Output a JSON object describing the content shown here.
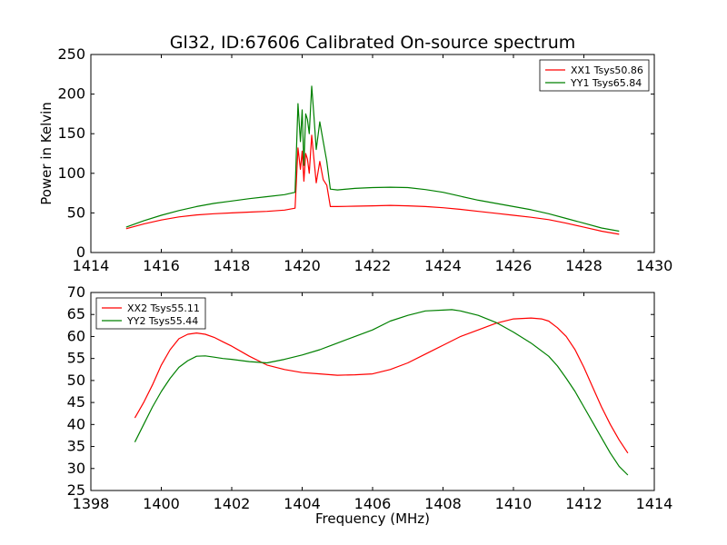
{
  "chart_data": [
    {
      "type": "line",
      "title": "Gl32, ID:67606 Calibrated On-source spectrum",
      "xlabel": "",
      "ylabel": "Power in Kelvin",
      "xlim": [
        1414,
        1430
      ],
      "ylim": [
        0,
        250
      ],
      "xticks": [
        "1414",
        "1416",
        "1418",
        "1420",
        "1422",
        "1424",
        "1426",
        "1428",
        "1430"
      ],
      "yticks": [
        "0",
        "50",
        "100",
        "150",
        "200",
        "250"
      ],
      "legend_position": "top-right",
      "grid": false,
      "series": [
        {
          "name": "XX1 Tsys50.86",
          "color": "#ff0000",
          "x": [
            1415.0,
            1415.5,
            1416.0,
            1416.5,
            1417.0,
            1417.5,
            1418.0,
            1418.5,
            1419.0,
            1419.5,
            1419.8,
            1419.88,
            1419.95,
            1420.0,
            1420.05,
            1420.1,
            1420.15,
            1420.2,
            1420.27,
            1420.33,
            1420.4,
            1420.5,
            1420.6,
            1420.7,
            1420.8,
            1421.0,
            1421.5,
            1422.0,
            1422.5,
            1423.0,
            1423.5,
            1424.0,
            1424.5,
            1425.0,
            1425.5,
            1426.0,
            1426.5,
            1427.0,
            1427.5,
            1428.0,
            1428.5,
            1429.0
          ],
          "values": [
            30,
            36,
            41,
            45,
            47.5,
            49,
            50,
            51,
            52,
            53.5,
            56,
            132,
            105,
            128,
            90,
            125,
            118,
            100,
            148,
            120,
            88,
            115,
            92,
            85,
            58,
            58,
            58.5,
            59,
            59.5,
            59,
            58,
            56.5,
            54.5,
            52,
            49.5,
            47,
            44.5,
            41.5,
            37,
            32,
            27,
            23
          ]
        },
        {
          "name": "YY1 Tsys65.84",
          "color": "#008000",
          "x": [
            1415.0,
            1415.5,
            1416.0,
            1416.5,
            1417.0,
            1417.5,
            1418.0,
            1418.5,
            1419.0,
            1419.5,
            1419.8,
            1419.88,
            1419.95,
            1420.0,
            1420.05,
            1420.1,
            1420.15,
            1420.2,
            1420.27,
            1420.33,
            1420.4,
            1420.5,
            1420.6,
            1420.7,
            1420.8,
            1421.0,
            1421.5,
            1422.0,
            1422.5,
            1423.0,
            1423.5,
            1424.0,
            1424.5,
            1425.0,
            1425.5,
            1426.0,
            1426.5,
            1427.0,
            1427.5,
            1428.0,
            1428.5,
            1429.0
          ],
          "values": [
            32,
            40,
            47,
            53,
            58,
            62,
            65,
            68,
            70.5,
            73,
            76,
            188,
            140,
            180,
            110,
            175,
            168,
            150,
            210,
            175,
            130,
            165,
            140,
            115,
            80,
            79,
            81,
            82,
            82.5,
            82,
            79.5,
            76,
            71,
            66,
            62,
            58,
            54,
            49,
            43,
            37,
            31,
            27
          ]
        }
      ]
    },
    {
      "type": "line",
      "title": "",
      "xlabel": "Frequency (MHz)",
      "ylabel": "",
      "xlim": [
        1398,
        1414
      ],
      "ylim": [
        25,
        70
      ],
      "xticks": [
        "1398",
        "1400",
        "1402",
        "1404",
        "1406",
        "1408",
        "1410",
        "1412",
        "1414"
      ],
      "yticks": [
        "25",
        "30",
        "35",
        "40",
        "45",
        "50",
        "55",
        "60",
        "65",
        "70"
      ],
      "legend_position": "top-left",
      "grid": false,
      "series": [
        {
          "name": "XX2 Tsys55.11",
          "color": "#ff0000",
          "x": [
            1399.25,
            1399.5,
            1399.75,
            1400.0,
            1400.25,
            1400.5,
            1400.75,
            1401.0,
            1401.25,
            1401.5,
            1401.75,
            1402.0,
            1402.5,
            1403.0,
            1403.5,
            1404.0,
            1404.5,
            1405.0,
            1405.5,
            1406.0,
            1406.5,
            1407.0,
            1407.5,
            1408.0,
            1408.5,
            1409.0,
            1409.5,
            1410.0,
            1410.5,
            1410.8,
            1411.0,
            1411.25,
            1411.5,
            1411.75,
            1412.0,
            1412.25,
            1412.5,
            1412.75,
            1413.0,
            1413.25
          ],
          "values": [
            41.5,
            45,
            49,
            53.5,
            57,
            59.5,
            60.5,
            60.8,
            60.5,
            59.8,
            58.8,
            57.8,
            55.5,
            53.5,
            52.5,
            51.8,
            51.5,
            51.2,
            51.3,
            51.5,
            52.5,
            54,
            56,
            58,
            60,
            61.5,
            63,
            64,
            64.2,
            64,
            63.5,
            62,
            60,
            57,
            53,
            48.5,
            44,
            40,
            36.5,
            33.5
          ]
        },
        {
          "name": "YY2 Tsys55.44",
          "color": "#008000",
          "x": [
            1399.25,
            1399.5,
            1399.75,
            1400.0,
            1400.25,
            1400.5,
            1400.75,
            1401.0,
            1401.25,
            1401.5,
            1401.75,
            1402.0,
            1402.5,
            1403.0,
            1403.5,
            1404.0,
            1404.5,
            1405.0,
            1405.5,
            1406.0,
            1406.5,
            1407.0,
            1407.5,
            1408.0,
            1408.25,
            1408.5,
            1409.0,
            1409.5,
            1410.0,
            1410.5,
            1411.0,
            1411.25,
            1411.5,
            1411.75,
            1412.0,
            1412.25,
            1412.5,
            1412.75,
            1413.0,
            1413.25
          ],
          "values": [
            36,
            40,
            44,
            47.5,
            50.5,
            53,
            54.5,
            55.5,
            55.6,
            55.3,
            55,
            54.8,
            54.3,
            54,
            54.8,
            55.8,
            57,
            58.5,
            60,
            61.5,
            63.5,
            64.8,
            65.8,
            66,
            66.1,
            65.8,
            64.8,
            63.2,
            61,
            58.5,
            55.5,
            53.3,
            50.5,
            47.5,
            44,
            40.5,
            37,
            33.5,
            30.5,
            28.5
          ]
        }
      ]
    }
  ]
}
